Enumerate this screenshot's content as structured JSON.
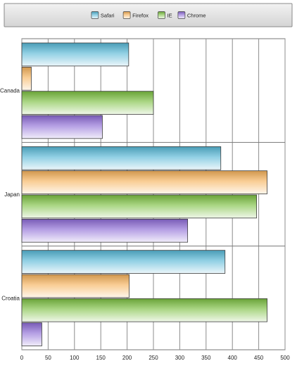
{
  "chart_data": {
    "type": "bar",
    "orientation": "horizontal",
    "categories": [
      "Canada",
      "Japan",
      "Croatia"
    ],
    "series": [
      {
        "name": "Safari",
        "values": [
          203,
          378,
          386
        ],
        "color": "#56b7d6"
      },
      {
        "name": "Firefox",
        "values": [
          18,
          466,
          204
        ],
        "color": "#f6b25a"
      },
      {
        "name": "IE",
        "values": [
          250,
          446,
          466
        ],
        "color": "#7cc041"
      },
      {
        "name": "Chrome",
        "values": [
          153,
          315,
          38
        ],
        "color": "#8d6bd6"
      }
    ],
    "xlim": [
      0,
      500
    ],
    "x_ticks": [
      "0",
      "50",
      "100",
      "150",
      "200",
      "250",
      "300",
      "350",
      "400",
      "450",
      "500"
    ],
    "grid": true,
    "legend_position": "top",
    "title": "",
    "xlabel": "",
    "ylabel": ""
  }
}
